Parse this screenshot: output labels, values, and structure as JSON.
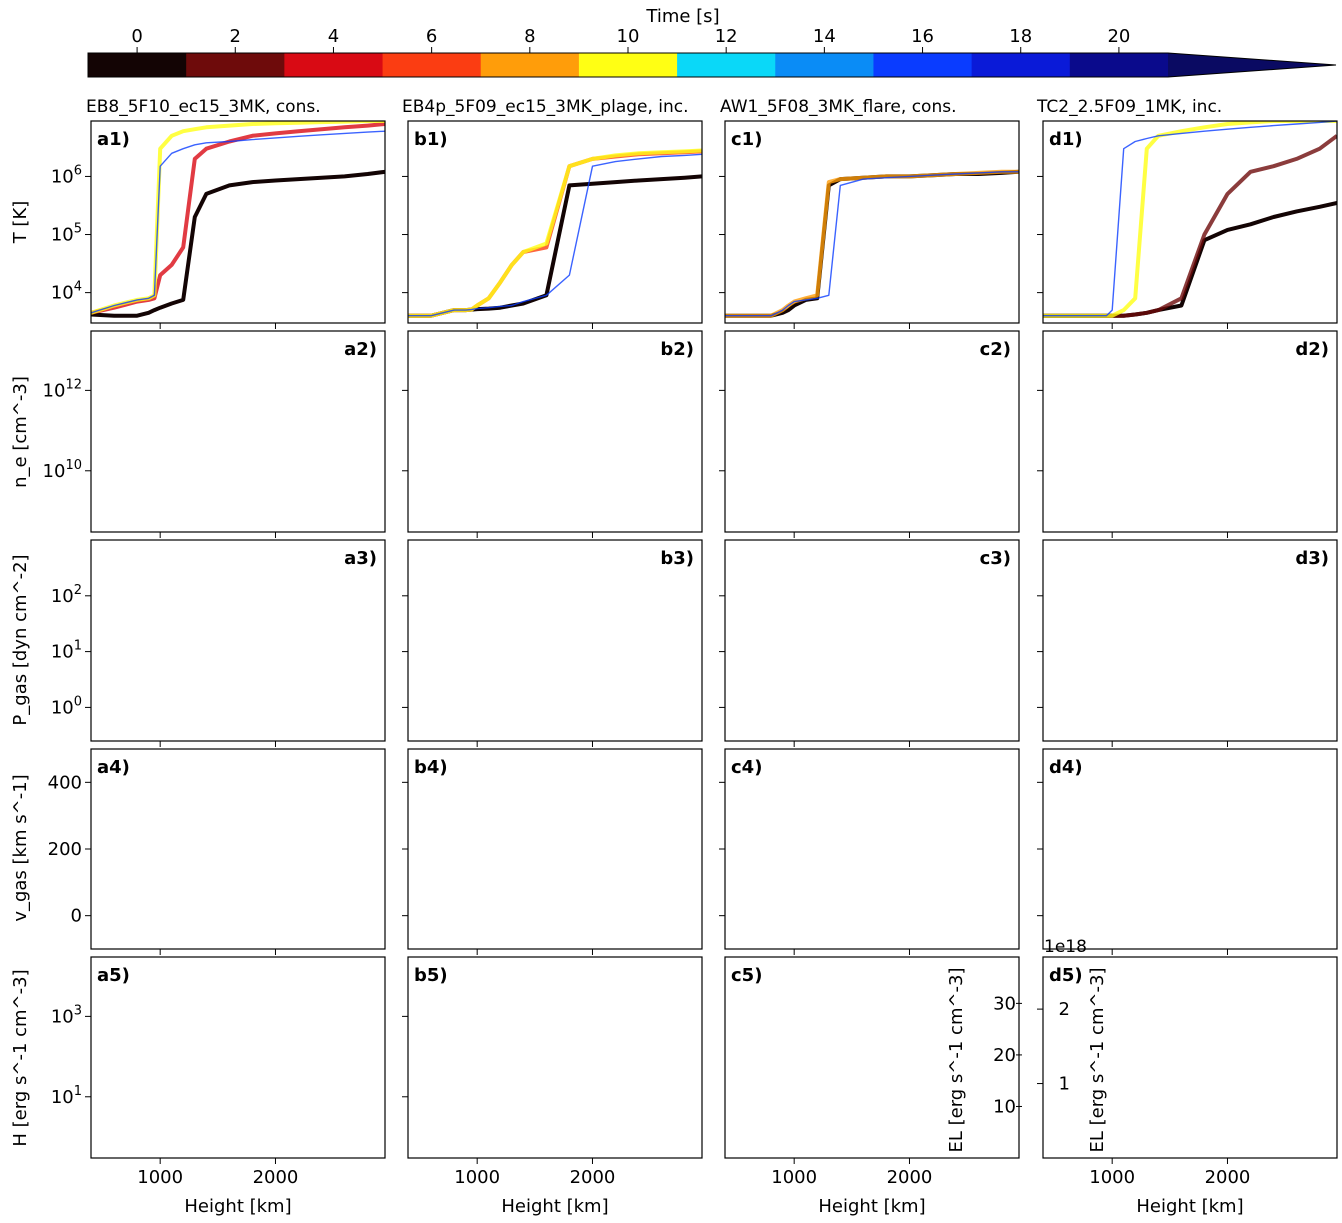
{
  "colorbar": {
    "label": "Time [s]",
    "ticks": [
      "0",
      "2",
      "4",
      "6",
      "8",
      "10",
      "12",
      "14",
      "16",
      "18",
      "20"
    ],
    "tick_values": [
      0,
      2,
      4,
      6,
      8,
      10,
      12,
      14,
      16,
      18,
      20
    ],
    "range": [
      -1,
      21
    ],
    "colors": [
      "#130404",
      "#6e0b0b",
      "#d90a14",
      "#fb3d12",
      "#ff9d0a",
      "#ffff14",
      "#0ad8f8",
      "#0a8cf6",
      "#0a3cff",
      "#0a1ad8",
      "#0a0a8c"
    ]
  },
  "columns": [
    {
      "title": "EB8_5F10_ec15_3MK, cons."
    },
    {
      "title": "EB4p_5F09_ec15_3MK_plage, inc."
    },
    {
      "title": "AW1_5F08_3MK_flare, cons."
    },
    {
      "title": "TC2_2.5F09_1MK, inc."
    }
  ],
  "rows": [
    {
      "ylabel": "T [K]",
      "scale": "log",
      "ylim": [
        3000,
        9000000
      ],
      "ticks": [
        "10^4",
        "10^5",
        "10^6"
      ],
      "tick_values": [
        10000,
        100000,
        1000000
      ]
    },
    {
      "ylabel": "n_e [cm^-3]",
      "scale": "log",
      "ylim": [
        300000000,
        30000000000000
      ],
      "ticks": [
        "10^10",
        "10^12"
      ],
      "tick_values": [
        10000000000,
        1000000000000
      ]
    },
    {
      "ylabel": "P_gas [dyn cm^-2]",
      "scale": "log",
      "ylim": [
        0.25,
        1000
      ],
      "ticks": [
        "10^0",
        "10^1",
        "10^2"
      ],
      "tick_values": [
        1,
        10,
        100
      ]
    },
    {
      "ylabel": "v_gas [km s^-1]",
      "scale": "linear",
      "ylim": [
        -100,
        500
      ],
      "ticks": [
        "0",
        "200",
        "400"
      ],
      "tick_values": [
        0,
        200,
        400
      ]
    },
    {
      "ylabel": "H [erg s^-1 cm^-3]",
      "scale": "log",
      "ylim": [
        0.3,
        30000
      ],
      "ticks": [
        "10^1",
        "10^3"
      ],
      "tick_values": [
        10,
        1000
      ]
    }
  ],
  "xaxis": {
    "label": "Height [km]",
    "ticks": [
      "1000",
      "2000"
    ],
    "tick_values": [
      1000,
      2000
    ],
    "xlim": [
      400,
      2950
    ]
  },
  "el_axis_c5": {
    "label": "EL [erg s^-1 cm^-3]",
    "ticks": [
      "10",
      "20",
      "30"
    ],
    "tick_values": [
      10,
      20,
      30
    ],
    "ylim": [
      0,
      39
    ]
  },
  "el_axis_d5": {
    "label": "EL [erg s^-1 cm^-3]",
    "ticks": [
      "1",
      "2"
    ],
    "tick_values": [
      1,
      2
    ],
    "ylim": [
      0,
      2.7
    ],
    "offset": "1e18"
  },
  "panel_labels": [
    [
      "a1)",
      "b1)",
      "c1)",
      "d1)"
    ],
    [
      "a2)",
      "b2)",
      "c2)",
      "d2)"
    ],
    [
      "a3)",
      "b3)",
      "c3)",
      "d3)"
    ],
    [
      "a4)",
      "b4)",
      "c4)",
      "d4)"
    ],
    [
      "a5)",
      "b5)",
      "c5)",
      "d5)"
    ]
  ],
  "chart_data": {
    "type": "line",
    "note_times": [
      0,
      2,
      4,
      6,
      8,
      10,
      12,
      14,
      16,
      18,
      20
    ],
    "x": [
      400,
      600,
      800,
      900,
      950,
      1000,
      1100,
      1200,
      1300,
      1400,
      1600,
      1800,
      2000,
      2200,
      2400,
      2600,
      2800,
      2950
    ],
    "panels": {
      "a1": {
        "series": [
          {
            "t": 0,
            "y": [
              4200,
              4000,
              4000,
              4500,
              5000,
              5500,
              6500,
              7500,
              200000,
              500000,
              700000,
              800000,
              850000,
              900000,
              950000,
              1000000,
              1100000,
              1200000
            ]
          },
          {
            "t": 4,
            "y": [
              4500,
              5500,
              7000,
              7500,
              8000,
              20000,
              30000,
              60000,
              2000000,
              3000000,
              4000000,
              5000000,
              5500000,
              6000000,
              6500000,
              7000000,
              7500000,
              8000000
            ]
          },
          {
            "t": 10,
            "y": [
              4500,
              6000,
              7500,
              8000,
              9000,
              3000000,
              5000000,
              6000000,
              6500000,
              7000000,
              7500000,
              8000000,
              8200000,
              8400000,
              8600000,
              8800000,
              9000000,
              9000000
            ]
          },
          {
            "t": 16,
            "y": [
              4500,
              6000,
              7500,
              8000,
              9000,
              1500000,
              2500000,
              3000000,
              3500000,
              3800000,
              4000000,
              4300000,
              4600000,
              4900000,
              5200000,
              5500000,
              5800000,
              6000000
            ]
          }
        ]
      },
      "b1": {
        "series": [
          {
            "t": 0,
            "y": [
              4000,
              4000,
              5000,
              5000,
              5100,
              5200,
              5300,
              5500,
              6000,
              6500,
              9000,
              700000,
              750000,
              800000,
              850000,
              900000,
              950000,
              1000000
            ]
          },
          {
            "t": 6,
            "y": [
              4000,
              4000,
              5000,
              5000,
              5100,
              6000,
              8000,
              15000,
              30000,
              50000,
              60000,
              1500000,
              2000000,
              2200000,
              2400000,
              2500000,
              2600000,
              2700000
            ]
          },
          {
            "t": 10,
            "y": [
              4000,
              4000,
              5000,
              5000,
              5100,
              6000,
              8000,
              15000,
              30000,
              50000,
              70000,
              1500000,
              2000000,
              2300000,
              2500000,
              2600000,
              2700000,
              2800000
            ]
          },
          {
            "t": 16,
            "y": [
              4000,
              4000,
              5000,
              5000,
              5100,
              5300,
              5500,
              5800,
              6000,
              7000,
              9000,
              20000,
              1500000,
              1800000,
              2000000,
              2200000,
              2300000,
              2400000
            ]
          }
        ]
      },
      "c1": {
        "series": [
          {
            "t": 0,
            "y": [
              4000,
              4000,
              4000,
              4500,
              5000,
              6000,
              7500,
              8000,
              700000,
              900000,
              950000,
              1000000,
              1000000,
              1050000,
              1100000,
              1100000,
              1150000,
              1200000
            ]
          },
          {
            "t": 8,
            "y": [
              4000,
              4000,
              4000,
              5000,
              6000,
              7000,
              8000,
              9000,
              800000,
              900000,
              950000,
              1000000,
              1000000,
              1050000,
              1100000,
              1150000,
              1200000,
              1200000
            ]
          },
          {
            "t": 16,
            "y": [
              4000,
              4000,
              4000,
              5000,
              6000,
              7000,
              7500,
              8000,
              9000,
              700000,
              900000,
              950000,
              1000000,
              1050000,
              1100000,
              1150000,
              1200000,
              1200000
            ]
          }
        ]
      },
      "d1": {
        "series": [
          {
            "t": 0,
            "y": [
              4000,
              4000,
              4000,
              4000,
              4000,
              4000,
              4000,
              4200,
              4500,
              5000,
              6000,
              80000,
              120000,
              150000,
              200000,
              250000,
              300000,
              350000
            ]
          },
          {
            "t": 2,
            "y": [
              4000,
              4000,
              4000,
              4000,
              4000,
              4000,
              4000,
              4200,
              4500,
              5000,
              8000,
              100000,
              500000,
              1200000,
              1500000,
              2000000,
              3000000,
              5000000
            ]
          },
          {
            "t": 10,
            "y": [
              4000,
              4000,
              4000,
              4000,
              4000,
              4000,
              5000,
              8000,
              3000000,
              5000000,
              6000000,
              7000000,
              8000000,
              8500000,
              9000000,
              9000000,
              9000000,
              9000000
            ]
          },
          {
            "t": 16,
            "y": [
              4000,
              4000,
              4000,
              4000,
              4000,
              5000,
              3000000,
              4000000,
              4500000,
              5000000,
              5500000,
              6000000,
              6500000,
              7000000,
              7500000,
              8000000,
              8500000,
              9000000
            ]
          }
        ]
      }
    }
  }
}
